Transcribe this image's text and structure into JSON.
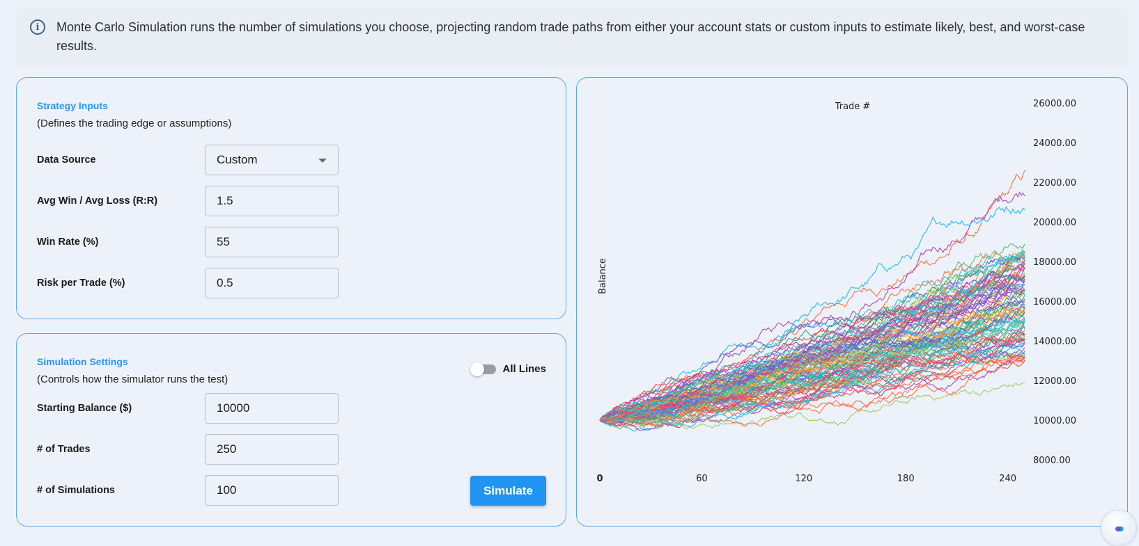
{
  "info_banner": {
    "icon": "info-icon",
    "text": "Monte Carlo Simulation runs the number of simulations you choose, projecting random trade paths from either your account stats or custom inputs to estimate likely, best, and worst-case results."
  },
  "strategy_inputs": {
    "title": "Strategy Inputs",
    "subtitle": "(Defines the trading edge or assumptions)",
    "fields": [
      {
        "label": "Data Source",
        "type": "select",
        "value": "Custom"
      },
      {
        "label": "Avg Win / Avg Loss (R:R)",
        "type": "input",
        "value": "1.5"
      },
      {
        "label": "Win Rate (%)",
        "type": "input",
        "value": "55"
      },
      {
        "label": "Risk per Trade (%)",
        "type": "input",
        "value": "0.5"
      }
    ]
  },
  "simulation_settings": {
    "title": "Simulation Settings",
    "subtitle": "(Controls how the simulator runs the test)",
    "toggle": {
      "label": "All Lines",
      "on": false
    },
    "fields": [
      {
        "label": "Starting Balance ($)",
        "value": "10000"
      },
      {
        "label": "# of Trades",
        "value": "250"
      },
      {
        "label": "# of Simulations",
        "value": "100"
      }
    ],
    "simulate_label": "Simulate"
  },
  "colors": {
    "accent": "#2193f3",
    "card_border": "#5aa8ee",
    "background": "#edf2fa",
    "series_palette": [
      "#ff7043",
      "#ab47bc",
      "#29b6f6",
      "#ec407a",
      "#26a69a",
      "#9ccc65",
      "#ffa726",
      "#7e57c2",
      "#26c6da",
      "#ef5350",
      "#66bb6a",
      "#5c6bc0"
    ]
  },
  "chart_data": {
    "type": "line",
    "title": "",
    "xlabel": "Trade #",
    "ylabel": "Balance",
    "x_ticks": [
      "0",
      "60",
      "120",
      "180",
      "240"
    ],
    "y_ticks": [
      "26000.00",
      "24000.00",
      "22000.00",
      "20000.00",
      "18000.00",
      "16000.00",
      "14000.00",
      "12000.00",
      "10000.00",
      "8000.00"
    ],
    "xlim": [
      0,
      250
    ],
    "ylim": [
      8000,
      26000
    ],
    "grid": false,
    "legend": "none",
    "series_count": 100,
    "points_per_series": 251,
    "start_value": 10000,
    "summary": {
      "best_final": 22600,
      "second_best_final": 21300,
      "third_best_final": 20600,
      "median_final_approx": 15500,
      "worst_final": 11900,
      "typical_final_range": [
        13000,
        19000
      ]
    }
  }
}
